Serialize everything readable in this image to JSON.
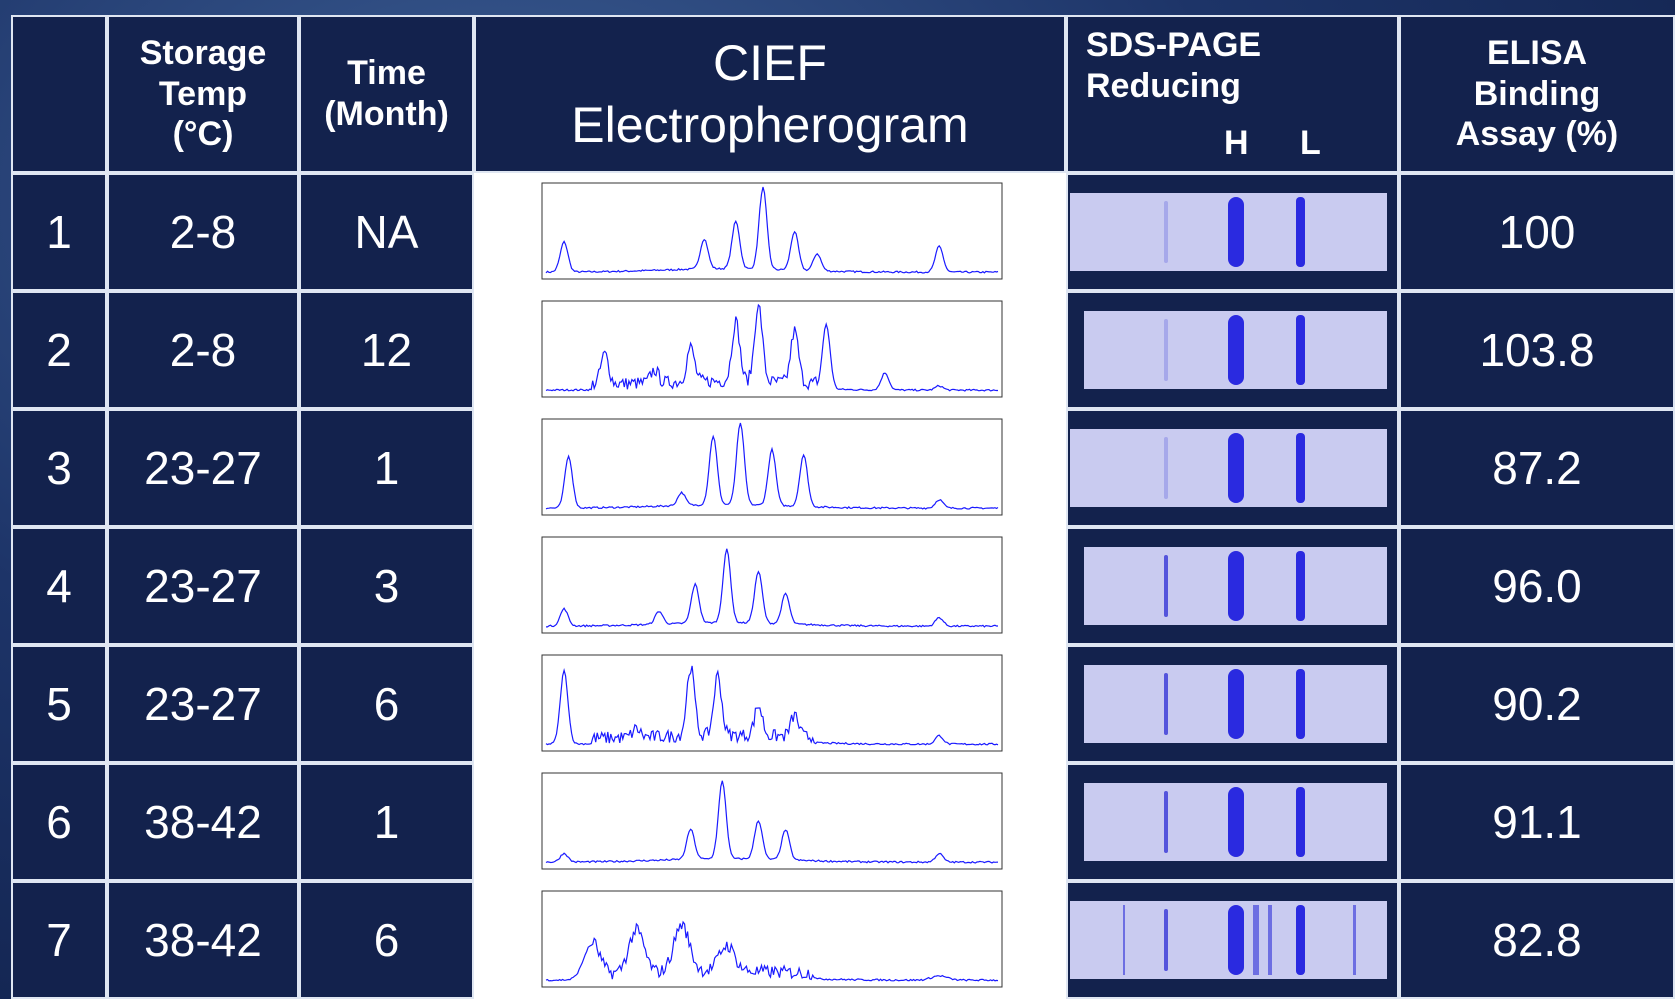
{
  "header": {
    "storage_temp": "Storage Temp (°C)",
    "time": "Time (Month)",
    "cief": "CIEF Electropherogram",
    "sds_page": "SDS-PAGE Reducing",
    "sds_lanes": [
      "H",
      "L"
    ],
    "elisa": "ELISA Binding Assay (%)"
  },
  "rows": [
    {
      "n": "1",
      "temp": "2-8",
      "time": "NA",
      "elisa": "100"
    },
    {
      "n": "2",
      "temp": "2-8",
      "time": "12",
      "elisa": "103.8"
    },
    {
      "n": "3",
      "temp": "23-27",
      "time": "1",
      "elisa": "87.2"
    },
    {
      "n": "4",
      "temp": "23-27",
      "time": "3",
      "elisa": "96.0"
    },
    {
      "n": "5",
      "temp": "23-27",
      "time": "6",
      "elisa": "90.2"
    },
    {
      "n": "6",
      "temp": "38-42",
      "time": "1",
      "elisa": "91.1"
    },
    {
      "n": "7",
      "temp": "38-42",
      "time": "6",
      "elisa": "82.8"
    }
  ]
}
